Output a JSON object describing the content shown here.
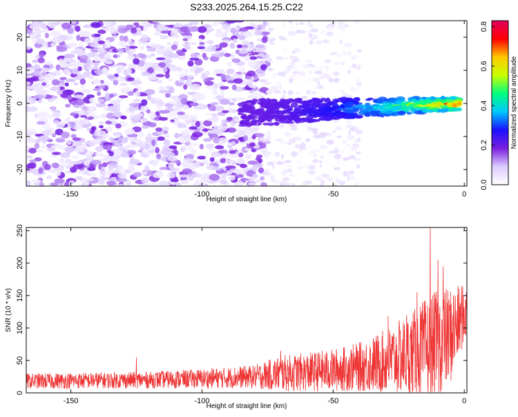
{
  "figure_title": "S233.2025.264.15.25.C22",
  "chart_data": [
    {
      "type": "heatmap",
      "xlabel": "Height of straight line (km)",
      "ylabel": "Frequency (Hz)",
      "xlim": [
        -167,
        1
      ],
      "ylim": [
        -25,
        25
      ],
      "xticks": [
        -150,
        -100,
        -50,
        0
      ],
      "yticks": [
        -20,
        -10,
        0,
        10,
        20
      ],
      "colorbar": {
        "label": "Normalized spectral amplitude",
        "range": [
          0.0,
          0.83
        ],
        "ticks": [
          "0.0",
          "0.2",
          "0.4",
          "0.6",
          "0.8"
        ],
        "tick_values": [
          0.0,
          0.2,
          0.4,
          0.6,
          0.8
        ],
        "stops": [
          "#ffffff",
          "#dccbff",
          "#7a1fe0",
          "#1a10ff",
          "#00c8ff",
          "#00ff80",
          "#c8ff00",
          "#ffc800",
          "#ff0000",
          "#e00060"
        ]
      },
      "features": {
        "background_band": {
          "x_start": -167,
          "x_end": -75,
          "freq_range": [
            -25,
            25
          ],
          "amplitude": [
            0.03,
            0.2
          ]
        },
        "fading_zone": {
          "x_start": -75,
          "x_end": -40,
          "amplitude": [
            0.01,
            0.07
          ]
        },
        "signal_ridge": {
          "x_start": -85,
          "x_end": -1,
          "center_freq_start": -3,
          "center_freq_end": 0,
          "half_width_hz": 4,
          "amplitude_start": 0.2,
          "amplitude_end": 0.83
        }
      }
    },
    {
      "type": "line",
      "xlabel": "Height of straight line (km)",
      "ylabel": "SNR (10 * v/v)",
      "xlim": [
        -167,
        1
      ],
      "ylim": [
        0,
        255
      ],
      "xticks": [
        -150,
        -100,
        -50,
        0
      ],
      "yticks": [
        0,
        50,
        100,
        150,
        200,
        250
      ],
      "series": [
        {
          "name": "SNR",
          "color": "#ee3333",
          "envelope": {
            "x": [
              -167,
              -120,
              -100,
              -80,
              -70,
              -60,
              -50,
              -40,
              -30,
              -20,
              -15,
              -10,
              -5,
              0,
              1
            ],
            "baseline": [
              18,
              20,
              22,
              25,
              30,
              32,
              35,
              40,
              48,
              60,
              65,
              75,
              90,
              120,
              125
            ],
            "amplitude": [
              12,
              13,
              15,
              18,
              28,
              30,
              33,
              38,
              50,
              65,
              80,
              85,
              75,
              45,
              40
            ]
          },
          "peaks": [
            {
              "x": -125,
              "y": 55
            },
            {
              "x": -70,
              "y": 65
            },
            {
              "x": -29,
              "y": 118
            },
            {
              "x": -22,
              "y": 120
            },
            {
              "x": -18,
              "y": 155
            },
            {
              "x": -13,
              "y": 255
            },
            {
              "x": -10,
              "y": 205
            },
            {
              "x": -8,
              "y": 195
            },
            {
              "x": -4,
              "y": 150
            },
            {
              "x": -1,
              "y": 165
            }
          ]
        }
      ]
    }
  ]
}
